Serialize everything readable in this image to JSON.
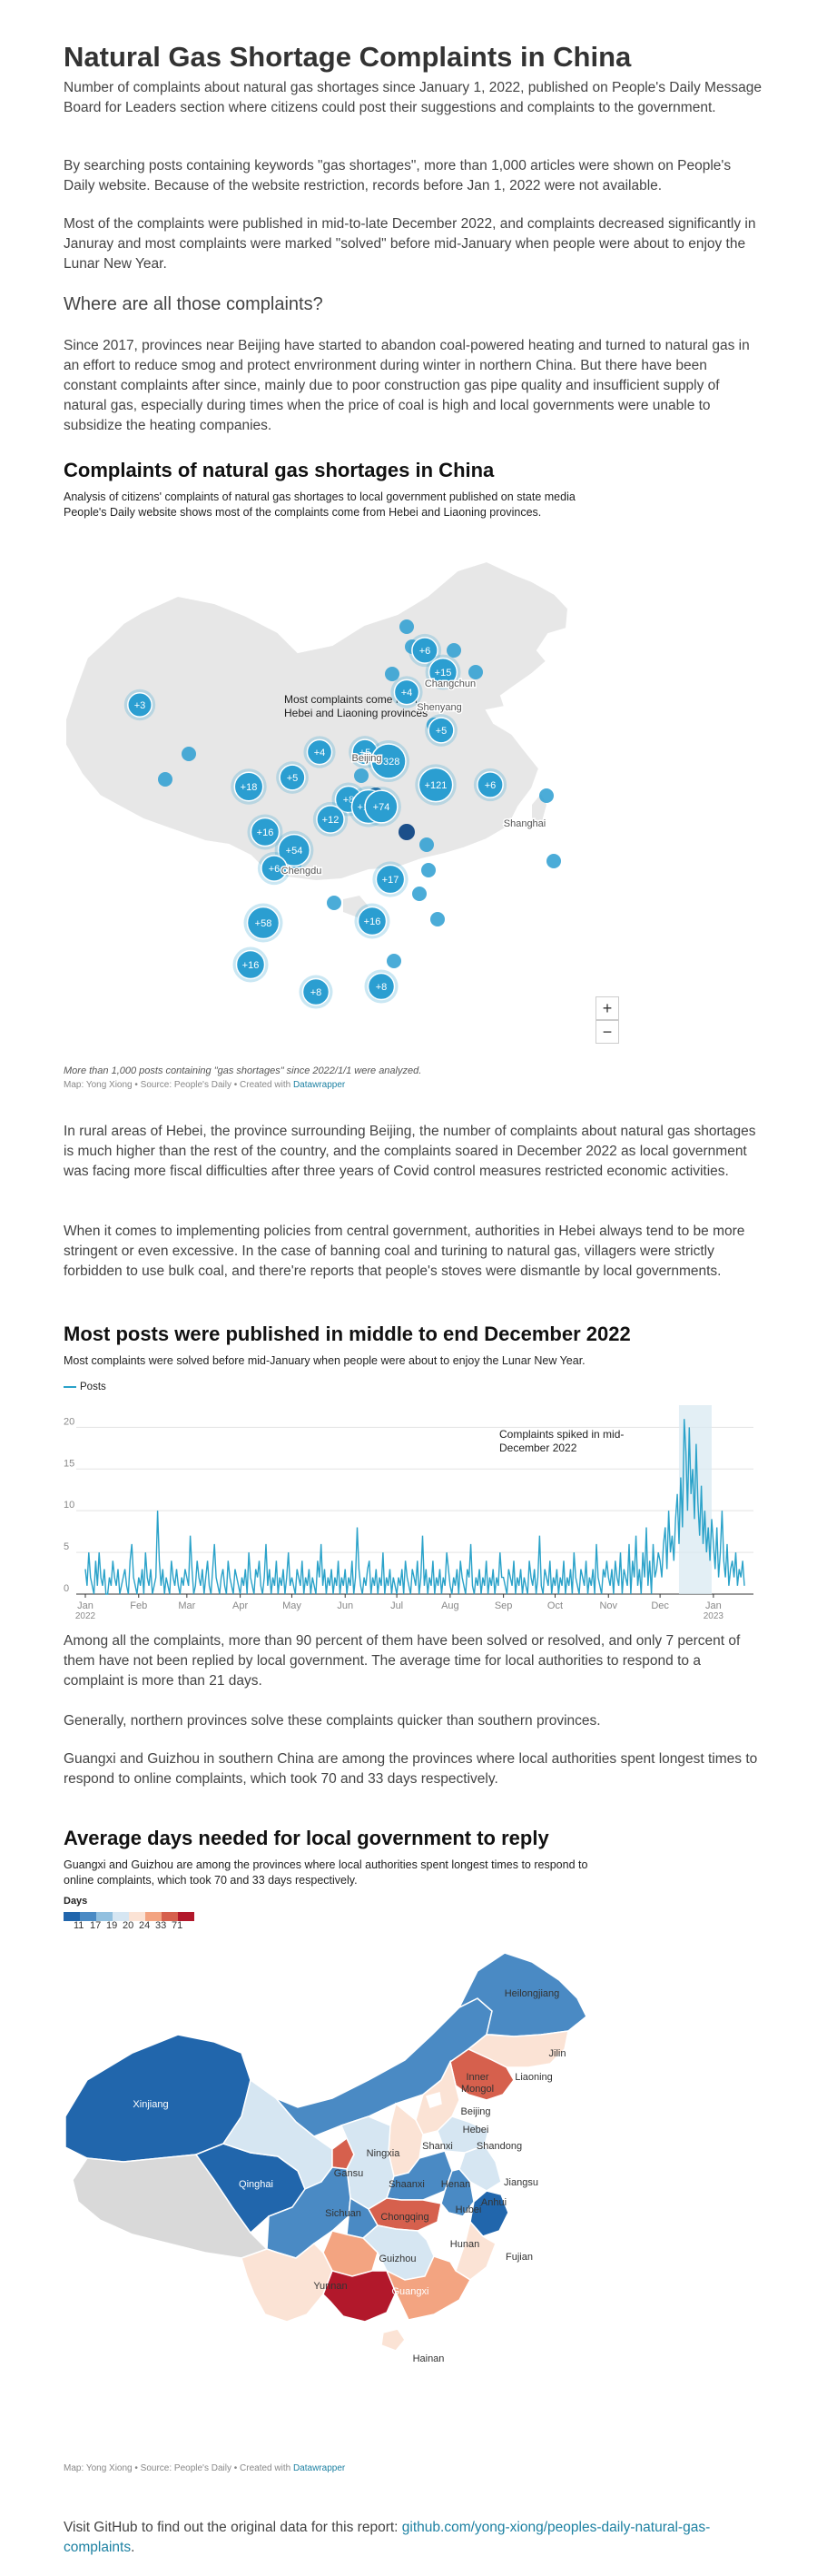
{
  "article": {
    "title": "Natural Gas Shortage Complaints in China",
    "p1": "Number of complaints about natural gas shortages since January 1, 2022, published on People's Daily Message Board for Leaders section where citizens could post their suggestions and complaints to the government.",
    "p2": "By searching posts containing keywords \"gas shortages\", more than 1,000 articles were shown on People's Daily website. Because of the website restriction, records before Jan 1, 2022 were not available.",
    "p3": "Most of the complaints were published in mid-to-late December 2022, and complaints decreased significantly in Januray and most complaints were marked \"solved\" before mid-January when people were about to enjoy the Lunar New Year.",
    "question": "Where are all those complaints?",
    "p4": "Since 2017, provinces near Beijing have started to abandon coal-powered heating and turned to natural gas in an effort to reduce smog and protect envrironment during winter in northern China. But there have been constant complaints after since, mainly due to poor construction gas pipe quality and insufficient supply of natural gas, especially during times when the price of coal is high and local governments were unable to subsidize the heating companies.",
    "p5": "In rural areas of Hebei, the province surrounding Beijing, the number of complaints about natural gas shortages is much higher than the rest of the country, and the complaints soared in December 2022 as local government was facing more fiscal difficulties after three years of Covid control measures restricted economic activities.",
    "p6": "When it comes to implementing policies from central government, authorities in Hebei always tend to be more stringent or even excessive. In the case of banning coal and turining to natural gas, villagers were strictly forbidden to use bulk coal, and there're reports that people's stoves were dismantle by local governments.",
    "p7": "Among all the complaints, more than 90 percent of them have been solved or resolved, and only 7 percent of them have not been replied by local government. The average time for local authorities to respond to a complaint is more than 21 days.",
    "p8": "Generally, northern provinces solve these complaints quicker than southern provinces.",
    "p9": "Guangxi and Guizhou in southern China are among the provinces where local authorities spent longest times to respond to online complaints, which took 70 and 33 days respectively.",
    "footer_text": "Visit GitHub to find out the original data for this report: ",
    "footer_link": "github.com/yong-xiong/peoples-daily-natural-gas-complaints",
    "footer_end": "."
  },
  "map1": {
    "title": "Complaints of natural gas shortages in China",
    "subtitle": "Analysis of citizens' complaints of natural gas shortages to local government published on state media People's Daily website shows most of the complaints come from Hebei and Liaoning provinces.",
    "annotation_line1": "Most complaints come from",
    "annotation_line2": "Hebei and Liaoning provinces",
    "notes": "More than 1,000 posts containing \"gas shortages\" since 2022/1/1 were analyzed.",
    "byline": "Map: Yong Xiong • Source: People's Daily • Created with ",
    "byline_link": "Datawrapper",
    "zoom_in": "+",
    "zoom_out": "−",
    "city_labels": [
      "Changchun",
      "Shenyang",
      "Beijing",
      "Shanghai",
      "Chengdu"
    ],
    "bubbles": [
      "+3",
      "+6",
      "+15",
      "+4",
      "+5",
      "+5",
      "+121",
      "+328",
      "+4",
      "+5",
      "+18",
      "+6",
      "+8",
      "+105",
      "+74",
      "+12",
      "+16",
      "+54",
      "+6",
      "+17",
      "+58",
      "+16",
      "+16",
      "+8",
      "+8"
    ],
    "bubble_color": "#2b9ed1",
    "dark_color": "#1b4f8a"
  },
  "chart": {
    "title": "Most posts were published in middle to end December 2022",
    "subtitle": "Most complaints were solved before mid-January when people were about to enjoy the Lunar New Year.",
    "legend": "Posts",
    "annotation_line1": "Complaints spiked in mid-",
    "annotation_line2": "December 2022",
    "line_color": "#2aa2c9"
  },
  "chart_data": {
    "type": "line",
    "series_name": "Posts",
    "x_labels": [
      "Jan",
      "Feb",
      "Mar",
      "Apr",
      "May",
      "Jun",
      "Jul",
      "Aug",
      "Sep",
      "Oct",
      "Nov",
      "Dec",
      "Jan"
    ],
    "x_sublabels": {
      "0": "2022",
      "12": "2023"
    },
    "y_ticks": [
      0,
      5,
      10,
      15,
      20
    ],
    "ylim": [
      0,
      22
    ],
    "highlight_range": [
      "2022-12-12",
      "2022-12-31"
    ],
    "daily_2022_jan_to_2023_jan": [
      3,
      1,
      5,
      2,
      1,
      0,
      4,
      1,
      5,
      2,
      1,
      3,
      0,
      0,
      2,
      1,
      4,
      2,
      1,
      3,
      0,
      1,
      2,
      3,
      1,
      0,
      4,
      6,
      2,
      1,
      0,
      2,
      1,
      3,
      0,
      5,
      2,
      1,
      3,
      0,
      1,
      2,
      10,
      4,
      1,
      3,
      0,
      2,
      1,
      0,
      4,
      2,
      1,
      3,
      1,
      0,
      2,
      1,
      3,
      2,
      1,
      7,
      3,
      0,
      1,
      4,
      2,
      1,
      3,
      0,
      2,
      4,
      1,
      0,
      3,
      6,
      2,
      1,
      0,
      2,
      3,
      1,
      0,
      4,
      2,
      1,
      0,
      3,
      2,
      1,
      0,
      2,
      1,
      3,
      0,
      5,
      2,
      1,
      0,
      3,
      2,
      4,
      1,
      0,
      2,
      6,
      1,
      3,
      0,
      2,
      1,
      4,
      0,
      2,
      1,
      3,
      0,
      2,
      5,
      1,
      2,
      1,
      0,
      3,
      2,
      1,
      4,
      0,
      2,
      1,
      3,
      0,
      2,
      1,
      0,
      4,
      2,
      6,
      1,
      3,
      0,
      2,
      1,
      3,
      0,
      2,
      1,
      4,
      0,
      2,
      1,
      3,
      0,
      2,
      1,
      4,
      0,
      2,
      8,
      3,
      1,
      0,
      2,
      1,
      3,
      4,
      0,
      2,
      1,
      3,
      0,
      2,
      1,
      5,
      0,
      2,
      1,
      3,
      0,
      2,
      1,
      0,
      2,
      1,
      3,
      0,
      4,
      2,
      1,
      0,
      3,
      2,
      1,
      4,
      0,
      2,
      7,
      1,
      3,
      0,
      2,
      1,
      4,
      0,
      2,
      1,
      3,
      0,
      2,
      1,
      5,
      3,
      1,
      0,
      2,
      1,
      3,
      0,
      4,
      2,
      1,
      0,
      3,
      2,
      6,
      1,
      0,
      2,
      1,
      3,
      0,
      2,
      1,
      4,
      0,
      2,
      1,
      3,
      0,
      2,
      1,
      5,
      2,
      2,
      1,
      0,
      3,
      2,
      1,
      4,
      0,
      2,
      1,
      3,
      0,
      2,
      1,
      0,
      4,
      2,
      1,
      3,
      0,
      2,
      7,
      1,
      0,
      3,
      2,
      1,
      4,
      0,
      2,
      1,
      3,
      0,
      2,
      1,
      4,
      0,
      2,
      1,
      3,
      0,
      5,
      2,
      1,
      0,
      3,
      2,
      1,
      4,
      0,
      2,
      1,
      3,
      0,
      6,
      2,
      1,
      0,
      3,
      2,
      4,
      2,
      1,
      3,
      0,
      4,
      2,
      1,
      5,
      0,
      3,
      2,
      1,
      6,
      0,
      4,
      2,
      7,
      1,
      3,
      0,
      5,
      2,
      8,
      1,
      4,
      0,
      6,
      2,
      3,
      5,
      4,
      2,
      6,
      8,
      3,
      10,
      5,
      7,
      4,
      9,
      12,
      6,
      14,
      8,
      21,
      17,
      10,
      20,
      12,
      15,
      9,
      18,
      11,
      7,
      13,
      6,
      10,
      5,
      8,
      4,
      9,
      6,
      3,
      8,
      2,
      5,
      10,
      4,
      2,
      6,
      1,
      3,
      4,
      2,
      5,
      1,
      3,
      2,
      4,
      1
    ]
  },
  "map2": {
    "title": "Average days needed for local government to reply",
    "subtitle": "Guangxi and Guizhou are among the provinces where local authorities spent longest times to respond to online complaints, which took 70 and 33 days respectively.",
    "legend_title": "Days",
    "legend_values": [
      "11",
      "17",
      "19",
      "20",
      "24",
      "33",
      "71"
    ],
    "legend_colors": [
      "#2166ac",
      "#4a8ac4",
      "#92c0df",
      "#d6e6f2",
      "#fbe3d5",
      "#f3a481",
      "#d6604d",
      "#b2182b"
    ],
    "byline": "Map: Yong Xiong • Source: People's Daily • Created with ",
    "byline_link": "Datawrapper",
    "province_labels": [
      "Xinjiang",
      "Heilongjiang",
      "Jilin",
      "Inner Mongol",
      "Liaoning",
      "Beijing",
      "Hebei",
      "Shandong",
      "Shanxi",
      "Ningxia",
      "Gansu",
      "Qinghai",
      "Shaanxi",
      "Henan",
      "Jiangsu",
      "Anhui",
      "Sichuan",
      "Chongqing",
      "Hubei",
      "Zhejiang",
      "Hunan",
      "Guizhou",
      "Fujian",
      "Yunnan",
      "Guangxi",
      "Hainan"
    ]
  }
}
